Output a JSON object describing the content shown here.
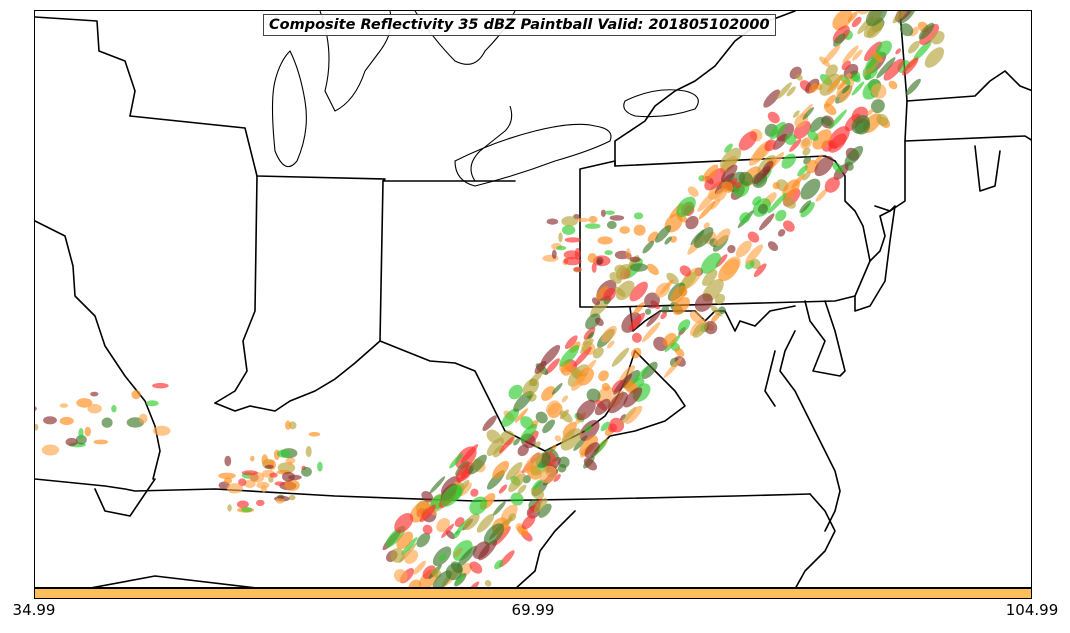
{
  "title": "Composite Reflectivity 35 dBZ Paintball Valid: 201805102000",
  "colorbar": {
    "color": "#ffbe5c",
    "ticks": [
      "34.99",
      "69.99",
      "104.99"
    ]
  },
  "colors": {
    "red": "#ff3030",
    "orange": "#ff8c1a",
    "green": "#2ecc2e",
    "dark_green": "#3d7a2a",
    "olive": "#b5a53a",
    "maroon": "#8b2e2e",
    "light_orange": "#ffa64d"
  }
}
